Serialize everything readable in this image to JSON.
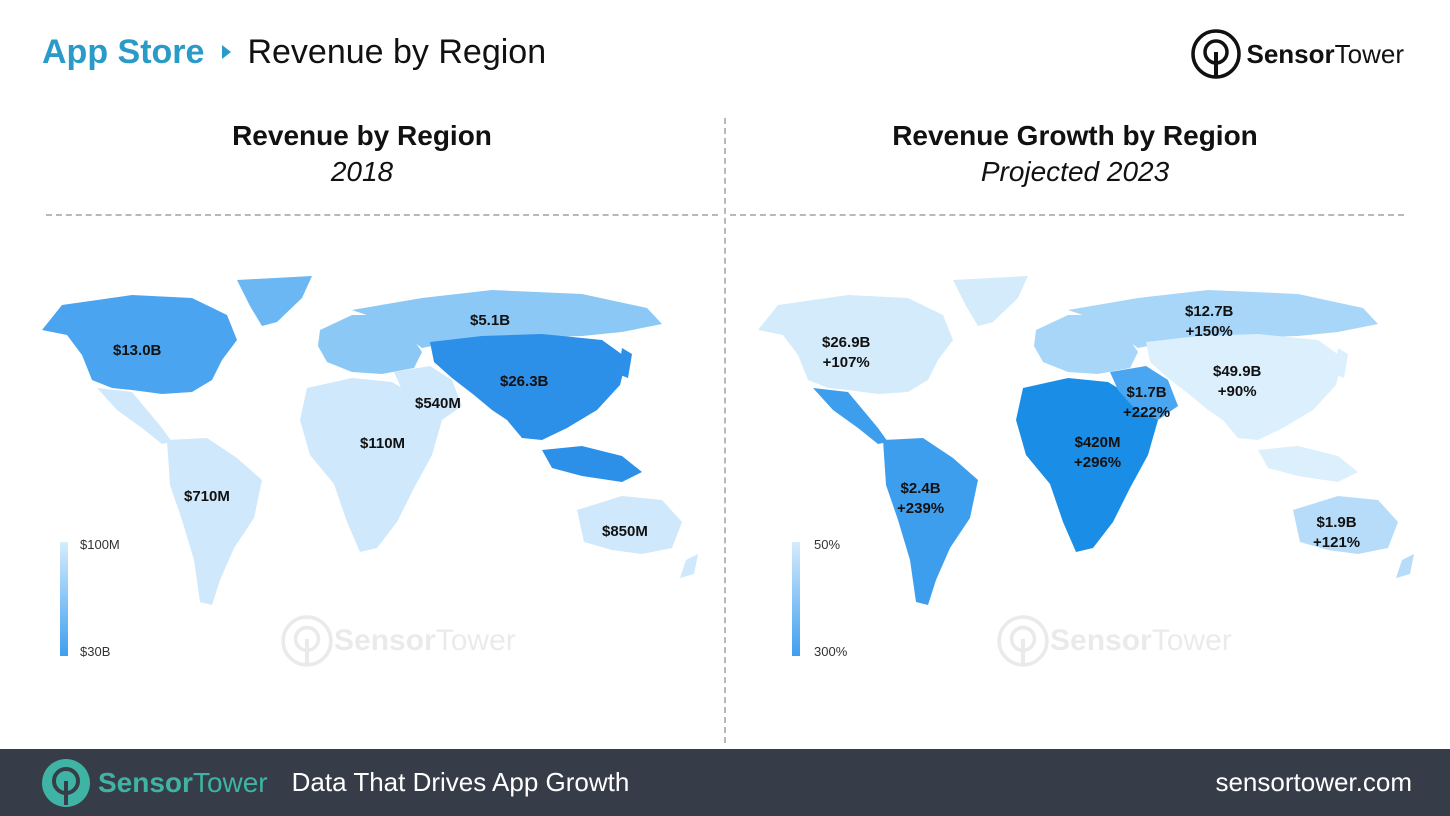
{
  "header": {
    "breadcrumb_root": "App Store",
    "page_title": "Revenue by Region"
  },
  "brand": {
    "name_bold": "Sensor",
    "name_regular": "Tower"
  },
  "panels": [
    {
      "title": "Revenue by Region",
      "subtitle": "2018",
      "legend": {
        "min_label": "$100M",
        "max_label": "$30B",
        "color_light": "#d6ecfb",
        "color_dark": "#3f9eef"
      },
      "labels": [
        "$13.0B",
        "$5.1B",
        "$26.3B",
        "$540M",
        "$110M",
        "$710M",
        "$850M"
      ]
    },
    {
      "title": "Revenue Growth by Region",
      "subtitle": "Projected 2023",
      "legend": {
        "min_label": "50%",
        "max_label": "300%",
        "color_light": "#d6ecfb",
        "color_dark": "#3f9eef"
      },
      "labels": [
        {
          "value": "$26.9B",
          "growth": "+107%"
        },
        {
          "value": "$12.7B",
          "growth": "+150%"
        },
        {
          "value": "$49.9B",
          "growth": "+90%"
        },
        {
          "value": "$1.7B",
          "growth": "+222%"
        },
        {
          "value": "$420M",
          "growth": "+296%"
        },
        {
          "value": "$2.4B",
          "growth": "+239%"
        },
        {
          "value": "$1.9B",
          "growth": "+121%"
        }
      ]
    }
  ],
  "colors": {
    "accent": "#2a9bc8",
    "footer_bg": "#373d48",
    "footer_brand": "#3fb4a4"
  },
  "footer": {
    "brand_bold": "Sensor",
    "brand_regular": "Tower",
    "tagline": "Data That Drives App Growth",
    "url": "sensortower.com"
  }
}
